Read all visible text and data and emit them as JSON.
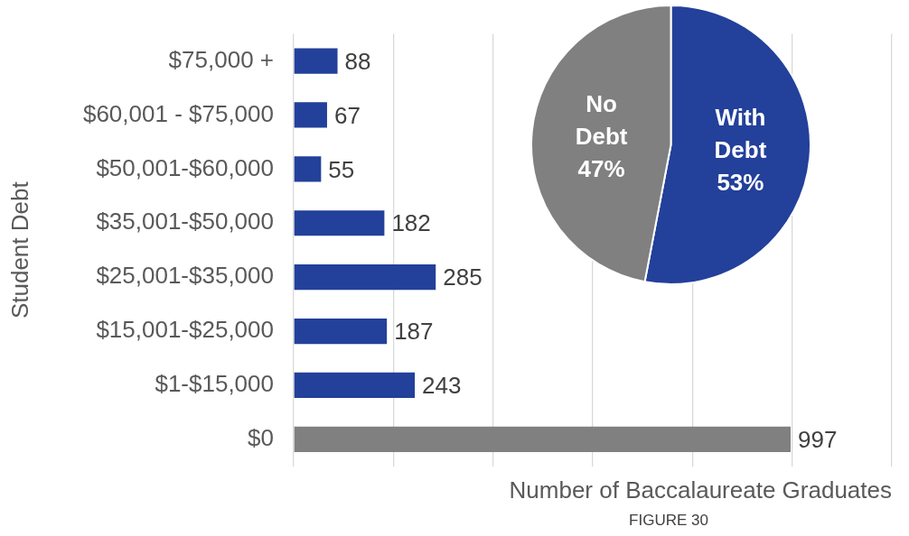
{
  "chart_data": [
    {
      "type": "bar",
      "orientation": "horizontal",
      "categories": [
        "$75,000 +",
        "$60,001 - $75,000",
        "$50,001-$60,000",
        "$35,001-$50,000",
        "$25,001-$35,000",
        "$15,001-$25,000",
        "$1-$15,000",
        "$0"
      ],
      "values": [
        88,
        67,
        55,
        182,
        285,
        187,
        243,
        997
      ],
      "colors": [
        "#23409a",
        "#23409a",
        "#23409a",
        "#23409a",
        "#23409a",
        "#23409a",
        "#23409a",
        "#808080"
      ],
      "xlim": [
        0,
        1200
      ],
      "xticks": [
        {
          "value": 0,
          "label": null
        },
        {
          "value": 200,
          "label": null
        },
        {
          "value": 400,
          "label": null
        },
        {
          "value": 600,
          "label": null
        },
        {
          "value": 800,
          "label": null
        },
        {
          "value": 1000,
          "label": null
        },
        {
          "value": 1200,
          "label": null
        }
      ],
      "xlabel": "Number of Baccalaureate Graduates",
      "ylabel": "Student Debt",
      "grid": "x",
      "tick_labels": "y",
      "data_labels": true,
      "annotations": [
        "FIGURE 30"
      ]
    },
    {
      "type": "pie",
      "categories": [
        "With Debt",
        "No Debt"
      ],
      "values": [
        53,
        47
      ],
      "colors": [
        "#23409a",
        "#808080"
      ],
      "value_labels": [
        "53%",
        "47%"
      ]
    }
  ]
}
